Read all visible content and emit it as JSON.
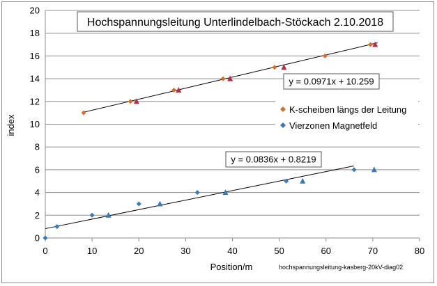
{
  "chart_data": {
    "type": "scatter",
    "title": "Hochspannungsleitung Unterlindelbach-Stöckach 2.10.2018",
    "xlabel": "Position/m",
    "ylabel": "index",
    "xlim": [
      0,
      80
    ],
    "ylim": [
      0,
      20
    ],
    "x_ticks": [
      0,
      10,
      20,
      30,
      40,
      50,
      60,
      70,
      80
    ],
    "y_ticks": [
      0,
      2,
      4,
      6,
      8,
      10,
      12,
      14,
      16,
      18,
      20
    ],
    "grid": "horizontal",
    "legend_position": "right",
    "series": [
      {
        "name": "K-scheiben längs der Leitung",
        "marker": "diamond",
        "color": "#d07030",
        "x": [
          8.2,
          18.2,
          27.5,
          38,
          49,
          59.8,
          69.5
        ],
        "y": [
          11,
          12,
          13,
          14,
          15,
          16,
          17
        ]
      },
      {
        "marker": "triangle",
        "color": "#b0304a",
        "x": [
          19.5,
          28.5,
          39.5,
          51,
          70.5
        ],
        "y": [
          12,
          13,
          14,
          15,
          17
        ]
      },
      {
        "name": "Vierzonen Magnetfeld",
        "marker": "diamond",
        "color": "#3a78b8",
        "x": [
          0,
          2.5,
          10,
          20,
          32.5,
          51.5,
          66
        ],
        "y": [
          0,
          1,
          2,
          3,
          4,
          5,
          6
        ]
      },
      {
        "marker": "triangle",
        "color": "#3a78b8",
        "x": [
          13.5,
          24.5,
          38.5,
          55,
          70.3
        ],
        "y": [
          2,
          3,
          4,
          5,
          6
        ]
      }
    ],
    "trendlines": [
      {
        "equation": "y = 0.0971x + 10.259",
        "slope": 0.0971,
        "intercept": 10.259,
        "x_range": [
          8,
          71
        ]
      },
      {
        "equation": "y = 0.0836x + 0.8219",
        "slope": 0.0836,
        "intercept": 0.8219,
        "x_range": [
          0,
          66
        ]
      }
    ],
    "footer_note": "hochspannungsleitung-kasberg-20kV-diag02"
  }
}
